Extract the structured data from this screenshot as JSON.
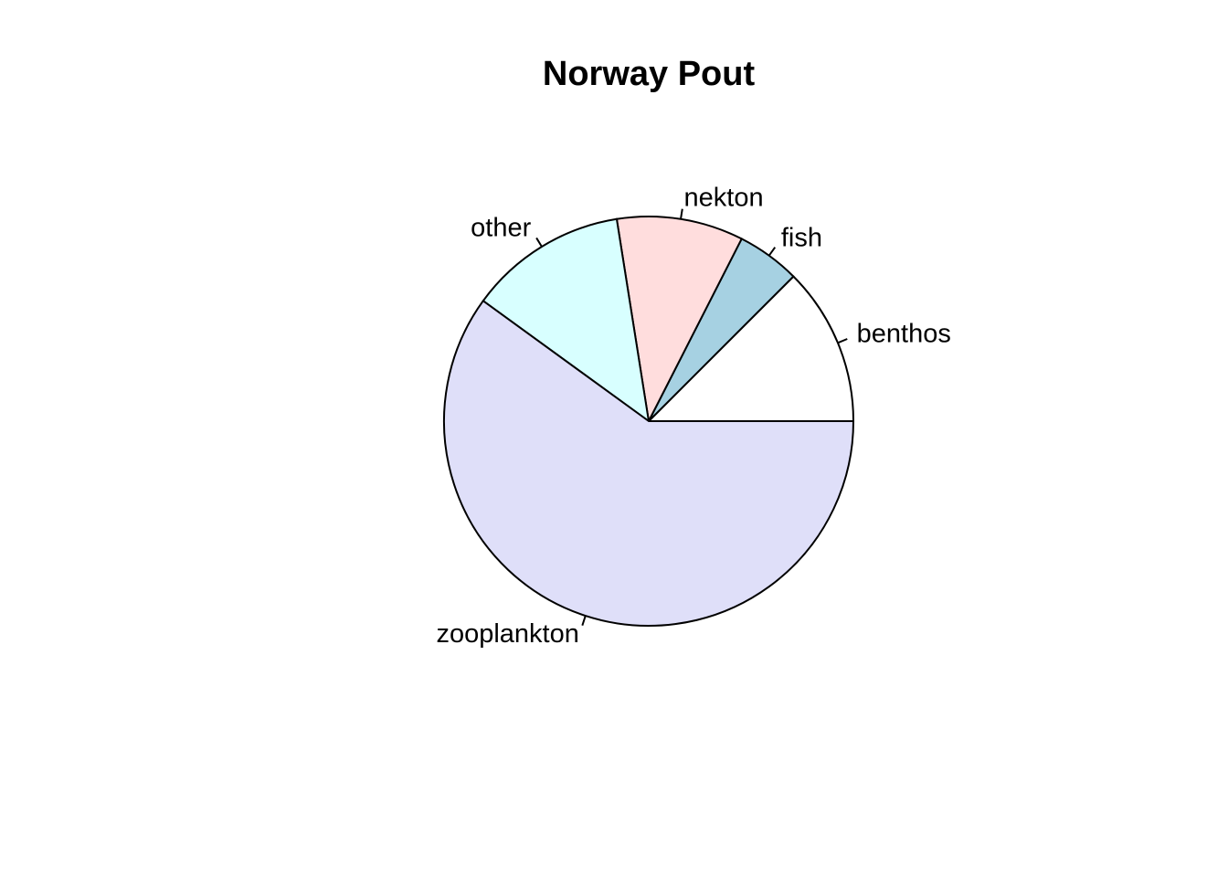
{
  "chart_data": {
    "type": "pie",
    "title": "Norway Pout",
    "start_angle_deg": 0,
    "direction": "counterclockwise",
    "slices": [
      {
        "label": "benthos",
        "value": 0.125,
        "color": "#ffffff"
      },
      {
        "label": "fish",
        "value": 0.05,
        "color": "#a6d1e2"
      },
      {
        "label": "nekton",
        "value": 0.1,
        "color": "#ffdddd"
      },
      {
        "label": "other",
        "value": 0.125,
        "color": "#d8ffff"
      },
      {
        "label": "zooplankton",
        "value": 0.6,
        "color": "#dfdff9"
      }
    ]
  }
}
